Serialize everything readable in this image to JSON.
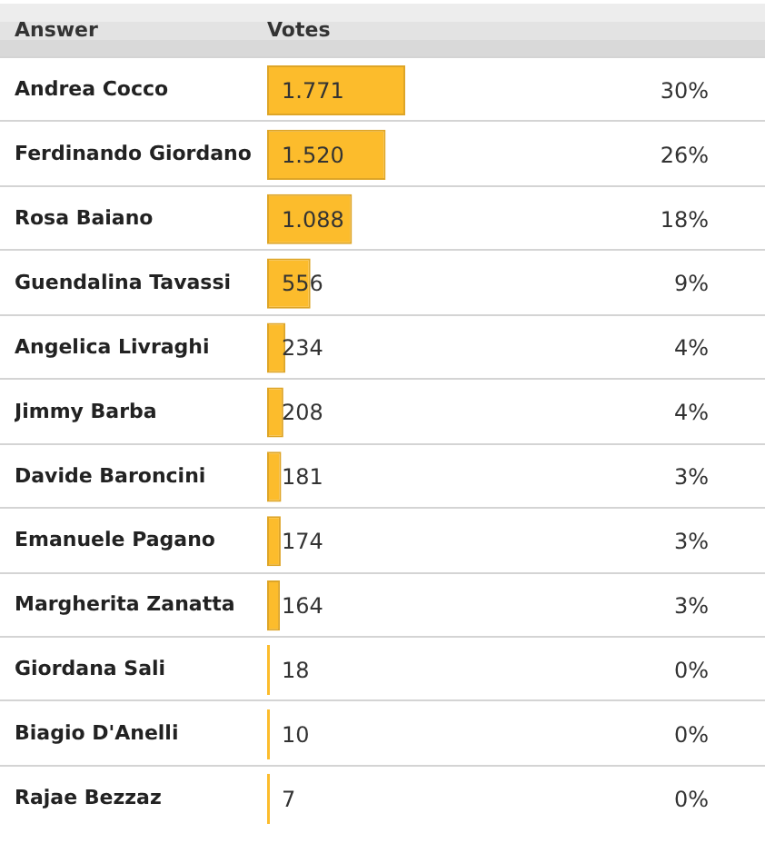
{
  "chart_data": {
    "type": "bar",
    "orientation": "horizontal",
    "xlabel": "Votes",
    "ylabel": "Answer",
    "categories": [
      "Andrea Cocco",
      "Ferdinando Giordano",
      "Rosa Baiano",
      "Guendalina Tavassi",
      "Angelica Livraghi",
      "Jimmy Barba",
      "Davide Baroncini",
      "Emanuele Pagano",
      "Margherita Zanatta",
      "Giordana Sali",
      "Biagio D'Anelli",
      "Rajae Bezzaz"
    ],
    "values": [
      1771,
      1520,
      1088,
      556,
      234,
      208,
      181,
      174,
      164,
      18,
      10,
      7
    ],
    "value_labels": [
      "1.771",
      "1.520",
      "1.088",
      "556",
      "234",
      "208",
      "181",
      "174",
      "164",
      "18",
      "10",
      "7"
    ],
    "color": "#fcbc2c",
    "annotations": [
      "30%",
      "26%",
      "18%",
      "9%",
      "4%",
      "4%",
      "3%",
      "3%",
      "3%",
      "0%",
      "0%",
      "0%"
    ],
    "grid": "y"
  }
}
